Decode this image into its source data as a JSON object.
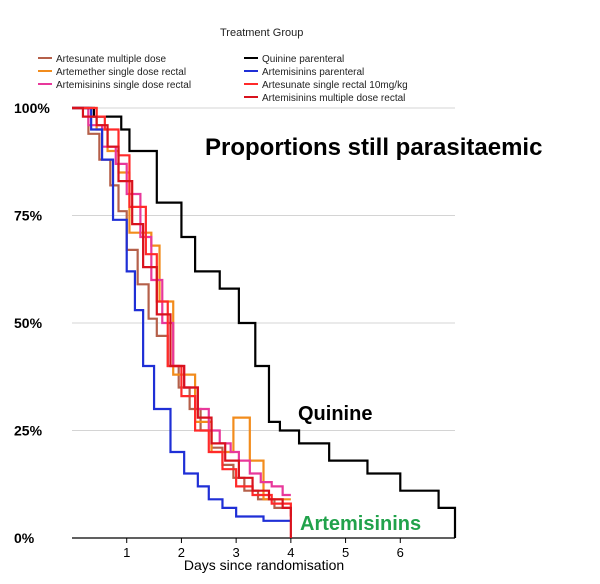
{
  "chart_data": {
    "type": "line",
    "title": "Proportions still parasitaemic",
    "legend_title": "Treatment Group",
    "xlabel": "Days since randomisation",
    "ylabel": "",
    "xlim": [
      0,
      7
    ],
    "ylim": [
      0,
      100
    ],
    "xticks": [
      1,
      2,
      3,
      4,
      5,
      6
    ],
    "yticks": [
      {
        "value": 0,
        "label": "0%"
      },
      {
        "value": 25,
        "label": "25%"
      },
      {
        "value": 50,
        "label": "50%"
      },
      {
        "value": 75,
        "label": "75%"
      },
      {
        "value": 100,
        "label": "100%"
      }
    ],
    "annotations": [
      {
        "id": "quinine",
        "text": "Quinine",
        "color": "#000000"
      },
      {
        "id": "artemisinins",
        "text": "Artemisinins",
        "color": "#21a24b"
      }
    ],
    "series": [
      {
        "name": "Artesunate multiple dose",
        "color": "#b5604a",
        "steps": [
          [
            0,
            100
          ],
          [
            0.3,
            94
          ],
          [
            0.5,
            88
          ],
          [
            0.7,
            82
          ],
          [
            0.85,
            76
          ],
          [
            1,
            67
          ],
          [
            1.2,
            59
          ],
          [
            1.4,
            51
          ],
          [
            1.55,
            47
          ],
          [
            1.75,
            40
          ],
          [
            1.95,
            35
          ],
          [
            2.15,
            30
          ],
          [
            2.35,
            25
          ],
          [
            2.55,
            21
          ],
          [
            2.75,
            17
          ],
          [
            2.95,
            14
          ],
          [
            3.15,
            11
          ],
          [
            3.4,
            9
          ],
          [
            3.7,
            7
          ],
          [
            4,
            7
          ]
        ]
      },
      {
        "name": "Artemether single dose rectal",
        "color": "#f28c1c",
        "steps": [
          [
            0,
            100
          ],
          [
            0.45,
            95
          ],
          [
            0.65,
            90
          ],
          [
            0.85,
            85
          ],
          [
            1.05,
            71
          ],
          [
            1.45,
            68
          ],
          [
            1.6,
            55
          ],
          [
            1.85,
            38
          ],
          [
            2.25,
            27
          ],
          [
            2.55,
            20
          ],
          [
            2.95,
            28
          ],
          [
            3.25,
            18
          ],
          [
            3.5,
            9
          ],
          [
            4,
            9
          ]
        ]
      },
      {
        "name": "Artemisinins single dose rectal",
        "color": "#e8389b",
        "steps": [
          [
            0,
            100
          ],
          [
            0.3,
            96
          ],
          [
            0.55,
            91
          ],
          [
            0.8,
            87
          ],
          [
            1,
            80
          ],
          [
            1.25,
            70
          ],
          [
            1.45,
            60
          ],
          [
            1.65,
            50
          ],
          [
            1.85,
            40
          ],
          [
            2.05,
            35
          ],
          [
            2.3,
            30
          ],
          [
            2.5,
            25
          ],
          [
            2.7,
            22
          ],
          [
            2.9,
            20
          ],
          [
            3.05,
            18
          ],
          [
            3.25,
            15
          ],
          [
            3.45,
            13
          ],
          [
            3.65,
            12
          ],
          [
            3.85,
            10
          ],
          [
            4,
            10
          ]
        ]
      },
      {
        "name": "Quinine parenteral",
        "color": "#000000",
        "steps": [
          [
            0,
            100
          ],
          [
            0.4,
            98
          ],
          [
            0.9,
            95
          ],
          [
            1.05,
            90
          ],
          [
            1.55,
            78
          ],
          [
            2,
            70
          ],
          [
            2.25,
            62
          ],
          [
            2.7,
            58
          ],
          [
            3.05,
            50
          ],
          [
            3.35,
            40
          ],
          [
            3.6,
            27
          ],
          [
            3.8,
            25
          ],
          [
            4.15,
            22
          ],
          [
            4.7,
            18
          ],
          [
            5.4,
            15
          ],
          [
            6,
            11
          ],
          [
            6.7,
            7
          ],
          [
            7,
            0
          ]
        ]
      },
      {
        "name": "Artemisinins parenteral",
        "color": "#1f2fd6",
        "steps": [
          [
            0,
            100
          ],
          [
            0.35,
            95
          ],
          [
            0.55,
            88
          ],
          [
            0.75,
            74
          ],
          [
            1,
            62
          ],
          [
            1.15,
            53
          ],
          [
            1.3,
            40
          ],
          [
            1.5,
            30
          ],
          [
            1.8,
            20
          ],
          [
            2.05,
            15
          ],
          [
            2.3,
            12
          ],
          [
            2.5,
            9
          ],
          [
            2.75,
            7
          ],
          [
            3,
            5
          ],
          [
            3.5,
            4
          ],
          [
            4,
            4
          ]
        ]
      },
      {
        "name": "Artesunate single rectal 10mg/kg",
        "color": "#ff2a2a",
        "steps": [
          [
            0,
            100
          ],
          [
            0.45,
            98
          ],
          [
            0.6,
            95
          ],
          [
            0.85,
            89
          ],
          [
            1.05,
            77
          ],
          [
            1.35,
            66
          ],
          [
            1.55,
            55
          ],
          [
            1.75,
            40
          ],
          [
            2,
            33
          ],
          [
            2.25,
            25
          ],
          [
            2.5,
            20
          ],
          [
            2.75,
            16
          ],
          [
            3,
            12
          ],
          [
            3.3,
            10
          ],
          [
            3.65,
            8
          ],
          [
            4,
            5
          ]
        ]
      },
      {
        "name": "Artemisinins multiple dose rectal",
        "color": "#d8121d",
        "steps": [
          [
            0,
            100
          ],
          [
            0.2,
            98
          ],
          [
            0.45,
            96
          ],
          [
            0.65,
            91
          ],
          [
            0.85,
            83
          ],
          [
            1.1,
            73
          ],
          [
            1.3,
            63
          ],
          [
            1.55,
            52
          ],
          [
            1.8,
            40
          ],
          [
            2.05,
            35
          ],
          [
            2.3,
            28
          ],
          [
            2.55,
            22
          ],
          [
            2.8,
            18
          ],
          [
            3.05,
            14
          ],
          [
            3.3,
            11
          ],
          [
            3.6,
            9
          ],
          [
            3.85,
            7
          ],
          [
            4,
            0
          ]
        ]
      }
    ]
  }
}
